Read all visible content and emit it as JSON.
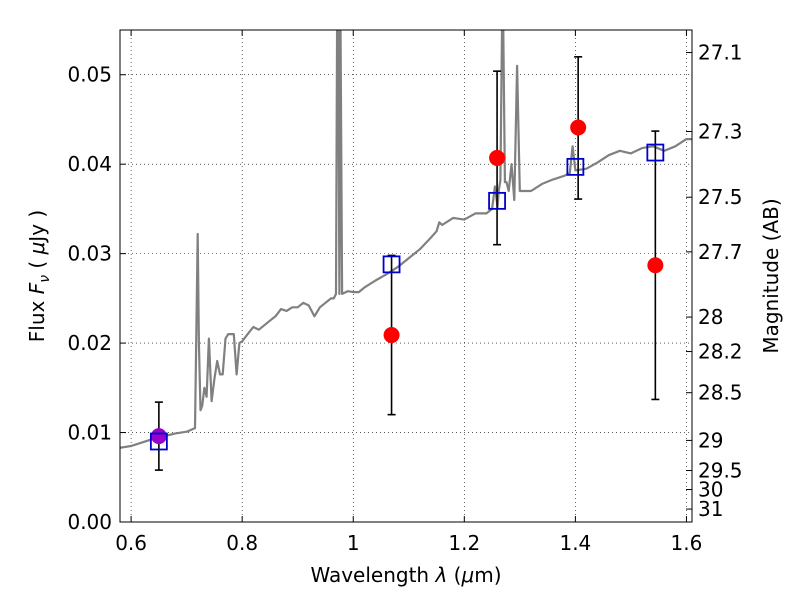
{
  "chart_data": {
    "type": "scatter",
    "title": "",
    "xlabel": "Wavelength  λ (μm)",
    "ylabel": "Flux  F_ν  ( μJy )",
    "ylabel_parts": {
      "prefix": "Flux  ",
      "symbol": "F",
      "subscript": "ν",
      "suffix_open": "  ( ",
      "mu": "μ",
      "suffix_close": "Jy )"
    },
    "xlabel_parts": {
      "prefix": "Wavelength  ",
      "symbol": "λ",
      "open": " (",
      "mu": "μ",
      "close": "m)"
    },
    "right_ylabel": "Magnitude (AB)",
    "xlim": [
      0.58,
      1.61
    ],
    "ylim": [
      0.0,
      0.055
    ],
    "x_ticks": [
      0.6,
      0.8,
      1.0,
      1.2,
      1.4,
      1.6
    ],
    "x_tick_labels": [
      "0.6",
      "0.8",
      "1",
      "1.2",
      "1.4",
      "1.6"
    ],
    "y_ticks": [
      0.0,
      0.01,
      0.02,
      0.03,
      0.04,
      0.05
    ],
    "y_tick_labels": [
      "0.00",
      "0.01",
      "0.02",
      "0.03",
      "0.04",
      "0.05"
    ],
    "right_ticks": [
      "27.1",
      "27.3",
      "27.5",
      "27.7",
      "28",
      "28.2",
      "28.5",
      "29",
      "29.5",
      "30",
      "31"
    ],
    "grid": true,
    "grid_style": "dotted",
    "colors": {
      "spectrum": "#808080",
      "observed": "#ff0000",
      "model": "#0000cc",
      "errorbar": "#000000",
      "overlap": "#9900cc"
    },
    "spectrum": {
      "x": [
        0.58,
        0.6,
        0.62,
        0.64,
        0.66,
        0.68,
        0.7,
        0.715,
        0.72,
        0.722,
        0.725,
        0.728,
        0.732,
        0.736,
        0.74,
        0.745,
        0.75,
        0.755,
        0.76,
        0.765,
        0.77,
        0.775,
        0.78,
        0.785,
        0.79,
        0.795,
        0.8,
        0.81,
        0.82,
        0.83,
        0.84,
        0.85,
        0.86,
        0.87,
        0.88,
        0.89,
        0.9,
        0.91,
        0.92,
        0.93,
        0.94,
        0.95,
        0.96,
        0.965,
        0.969,
        0.971,
        0.973,
        0.975,
        0.977,
        0.98,
        0.99,
        1.0,
        1.01,
        1.02,
        1.04,
        1.06,
        1.08,
        1.1,
        1.12,
        1.14,
        1.15,
        1.155,
        1.16,
        1.18,
        1.2,
        1.22,
        1.24,
        1.25,
        1.255,
        1.26,
        1.262,
        1.265,
        1.268,
        1.27,
        1.273,
        1.276,
        1.28,
        1.285,
        1.29,
        1.295,
        1.3,
        1.32,
        1.34,
        1.36,
        1.38,
        1.39,
        1.395,
        1.4,
        1.42,
        1.44,
        1.46,
        1.48,
        1.5,
        1.52,
        1.54,
        1.56,
        1.58,
        1.6,
        1.61
      ],
      "y": [
        0.0083,
        0.0085,
        0.0089,
        0.0093,
        0.0096,
        0.0099,
        0.0101,
        0.0105,
        0.0322,
        0.02,
        0.0125,
        0.013,
        0.015,
        0.014,
        0.0205,
        0.0135,
        0.016,
        0.018,
        0.0165,
        0.0165,
        0.0205,
        0.021,
        0.021,
        0.021,
        0.0165,
        0.02,
        0.0202,
        0.021,
        0.0218,
        0.0215,
        0.022,
        0.0225,
        0.023,
        0.0238,
        0.0236,
        0.024,
        0.024,
        0.0245,
        0.0242,
        0.023,
        0.024,
        0.0245,
        0.025,
        0.025,
        0.0255,
        0.056,
        0.056,
        0.0255,
        0.056,
        0.0255,
        0.0258,
        0.0257,
        0.0257,
        0.0262,
        0.027,
        0.0277,
        0.0285,
        0.0295,
        0.0305,
        0.0318,
        0.0325,
        0.0335,
        0.0332,
        0.034,
        0.0338,
        0.0345,
        0.0345,
        0.035,
        0.0375,
        0.0352,
        0.037,
        0.0382,
        0.056,
        0.056,
        0.038,
        0.038,
        0.037,
        0.04,
        0.036,
        0.051,
        0.037,
        0.037,
        0.0378,
        0.0383,
        0.0387,
        0.039,
        0.042,
        0.0393,
        0.0395,
        0.0402,
        0.041,
        0.0415,
        0.0412,
        0.0418,
        0.042,
        0.0415,
        0.042,
        0.0428,
        0.0428
      ]
    },
    "observed": [
      {
        "x": 0.65,
        "y": 0.0096,
        "yerr_low": 0.0058,
        "yerr_high": 0.0134
      },
      {
        "x": 1.069,
        "y": 0.0209,
        "yerr_low": 0.012,
        "yerr_high": 0.0298
      },
      {
        "x": 1.259,
        "y": 0.0407,
        "yerr_low": 0.031,
        "yerr_high": 0.0504
      },
      {
        "x": 1.405,
        "y": 0.0441,
        "yerr_low": 0.0361,
        "yerr_high": 0.052
      },
      {
        "x": 1.544,
        "y": 0.0287,
        "yerr_low": 0.0137,
        "yerr_high": 0.0437
      }
    ],
    "model": [
      {
        "x": 0.65,
        "y": 0.009
      },
      {
        "x": 1.069,
        "y": 0.0288
      },
      {
        "x": 1.259,
        "y": 0.0359
      },
      {
        "x": 1.4,
        "y": 0.0397
      },
      {
        "x": 1.544,
        "y": 0.0413
      }
    ]
  }
}
